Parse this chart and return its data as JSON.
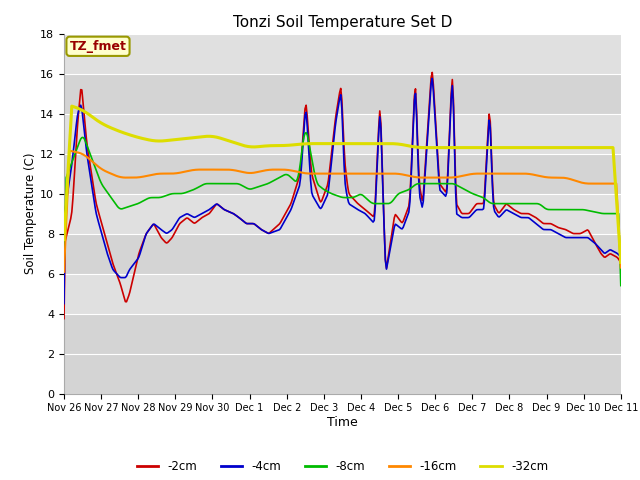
{
  "title": "Tonzi Soil Temperature Set D",
  "xlabel": "Time",
  "ylabel": "Soil Temperature (C)",
  "ylim": [
    0,
    18
  ],
  "yticks": [
    0,
    2,
    4,
    6,
    8,
    10,
    12,
    14,
    16,
    18
  ],
  "legend_label": "TZ_fmet",
  "series": {
    "-2cm": {
      "color": "#cc0000",
      "lw": 1.2
    },
    "-4cm": {
      "color": "#0000cc",
      "lw": 1.2
    },
    "-8cm": {
      "color": "#00bb00",
      "lw": 1.2
    },
    "-16cm": {
      "color": "#ff8800",
      "lw": 1.5
    },
    "-32cm": {
      "color": "#dddd00",
      "lw": 2.2
    }
  },
  "x_labels": [
    "Nov 26",
    "Nov 27",
    "Nov 28",
    "Nov 29",
    "Nov 30",
    "Dec 1",
    "Dec 2",
    "Dec 3",
    "Dec 4",
    "Dec 5",
    "Dec 6",
    "Dec 7",
    "Dec 8",
    "Dec 9",
    "Dec 10",
    "Dec 11"
  ],
  "legend_entries": [
    "-2cm",
    "-4cm",
    "-8cm",
    "-16cm",
    "-32cm"
  ],
  "legend_colors": [
    "#cc0000",
    "#0000cc",
    "#00bb00",
    "#ff8800",
    "#dddd00"
  ],
  "bg_bands": [
    [
      0,
      4,
      "#d8d8d8"
    ],
    [
      4,
      6,
      "#e8e8e8"
    ],
    [
      6,
      8,
      "#d8d8d8"
    ],
    [
      8,
      10,
      "#e8e8e8"
    ],
    [
      10,
      12,
      "#d8d8d8"
    ],
    [
      12,
      14,
      "#e8e8e8"
    ],
    [
      14,
      16,
      "#d8d8d8"
    ],
    [
      16,
      18,
      "#e8e8e8"
    ]
  ]
}
